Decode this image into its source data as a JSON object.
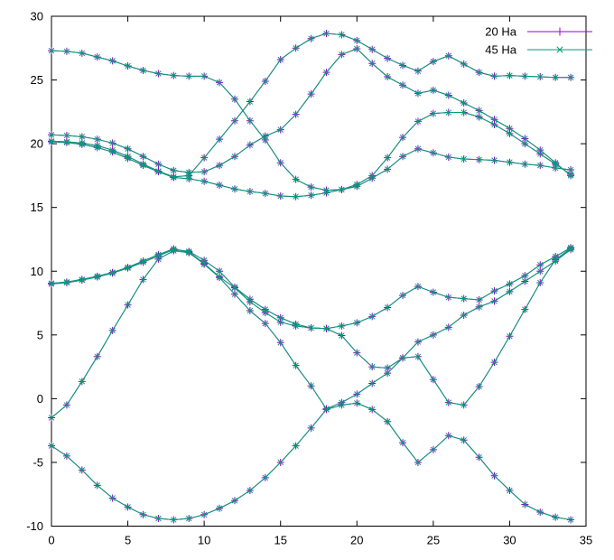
{
  "chart_data": {
    "type": "line",
    "title": "",
    "xlabel": "",
    "ylabel": "",
    "xlim": [
      0,
      35
    ],
    "ylim": [
      -10,
      30
    ],
    "xticks": [
      0,
      5,
      10,
      15,
      20,
      25,
      30,
      35
    ],
    "yticks": [
      -10,
      -5,
      0,
      5,
      10,
      15,
      20,
      25,
      30
    ],
    "grid": false,
    "legend_position": "top-right-inside",
    "x": [
      0,
      1,
      2,
      3,
      4,
      5,
      6,
      7,
      8,
      9,
      10,
      11,
      12,
      13,
      14,
      15,
      16,
      17,
      18,
      19,
      20,
      21,
      22,
      23,
      24,
      25,
      26,
      27,
      28,
      29,
      30,
      31,
      32,
      33,
      34
    ],
    "series": [
      {
        "name": "20 Ha",
        "color": "#9400d3",
        "marker": "plus"
      },
      {
        "name": "45 Ha",
        "color": "#009e73",
        "marker": "cross"
      }
    ],
    "note": "Both series are visually coincident band-structure curves; each series draws the same 8 bands.",
    "bands": [
      [
        -3.7,
        -4.5,
        -5.6,
        -6.8,
        -7.8,
        -8.5,
        -9.1,
        -9.4,
        -9.5,
        -9.4,
        -9.1,
        -8.6,
        -8.0,
        -7.2,
        -6.2,
        -5.0,
        -3.7,
        -2.3,
        -0.85,
        -0.5,
        -0.35,
        -0.85,
        -1.8,
        -3.45,
        -5.0,
        -4.0,
        -2.9,
        -3.25,
        -4.6,
        -6.05,
        -7.2,
        -8.3,
        -8.9,
        -9.3,
        -9.5
      ],
      [
        -1.5,
        -0.5,
        1.35,
        3.3,
        5.35,
        7.35,
        9.35,
        10.95,
        11.6,
        11.45,
        10.55,
        9.5,
        8.2,
        6.9,
        5.9,
        4.4,
        2.6,
        1.0,
        -0.8,
        -0.3,
        0.35,
        1.2,
        2.0,
        3.2,
        3.3,
        1.5,
        -0.3,
        -0.5,
        0.95,
        2.85,
        4.9,
        7.0,
        9.1,
        10.9,
        11.8
      ],
      [
        9.0,
        9.1,
        9.3,
        9.55,
        9.85,
        10.25,
        10.7,
        11.2,
        11.7,
        11.55,
        10.85,
        10.0,
        8.75,
        7.8,
        7.0,
        6.35,
        5.85,
        5.55,
        5.5,
        5.7,
        5.95,
        6.45,
        7.15,
        8.1,
        8.8,
        8.35,
        7.95,
        7.85,
        7.75,
        8.45,
        9.0,
        9.65,
        10.5,
        11.15,
        11.85
      ],
      [
        9.05,
        9.15,
        9.35,
        9.6,
        9.9,
        10.3,
        10.8,
        11.3,
        11.75,
        11.5,
        10.6,
        9.55,
        8.7,
        7.6,
        6.75,
        6.0,
        5.7,
        5.55,
        5.5,
        4.95,
        3.6,
        2.5,
        2.4,
        3.2,
        4.45,
        5.0,
        5.6,
        6.55,
        7.2,
        7.65,
        8.4,
        9.2,
        10.0,
        10.8,
        11.7
      ],
      [
        20.15,
        20.1,
        19.95,
        19.7,
        19.35,
        18.85,
        18.3,
        17.8,
        17.35,
        17.25,
        17.05,
        16.75,
        16.45,
        16.25,
        16.1,
        15.9,
        15.85,
        15.95,
        16.15,
        16.4,
        16.65,
        17.3,
        18.0,
        19.0,
        19.6,
        19.28,
        18.95,
        18.8,
        18.75,
        18.7,
        18.55,
        18.4,
        18.3,
        18.1,
        17.95
      ],
      [
        27.3,
        27.25,
        27.1,
        26.8,
        26.5,
        26.1,
        25.75,
        25.5,
        25.35,
        25.3,
        25.3,
        24.8,
        23.5,
        21.8,
        20.3,
        18.5,
        17.2,
        16.6,
        16.35,
        16.4,
        16.8,
        17.5,
        18.9,
        20.5,
        21.75,
        22.37,
        22.45,
        22.45,
        22.1,
        21.5,
        20.8,
        20.0,
        19.2,
        18.4,
        17.6
      ],
      [
        20.2,
        20.15,
        20.05,
        19.85,
        19.5,
        19.0,
        18.4,
        17.85,
        17.4,
        17.5,
        18.9,
        20.35,
        21.8,
        23.3,
        24.9,
        26.6,
        27.5,
        28.25,
        28.65,
        28.55,
        28.1,
        27.4,
        26.7,
        26.15,
        25.7,
        26.45,
        26.9,
        26.25,
        25.6,
        25.3,
        25.35,
        25.3,
        25.25,
        25.2,
        25.2
      ],
      [
        20.7,
        20.65,
        20.55,
        20.35,
        20.05,
        19.6,
        19.0,
        18.4,
        17.9,
        17.75,
        17.8,
        18.3,
        19.0,
        19.9,
        20.6,
        21.1,
        22.3,
        23.9,
        25.6,
        27.0,
        27.45,
        26.3,
        25.25,
        24.6,
        23.95,
        24.2,
        23.8,
        23.2,
        22.6,
        21.9,
        21.2,
        20.4,
        19.5,
        18.5,
        17.5
      ]
    ],
    "axis_color": "#000000",
    "background_color": "#ffffff",
    "tick_font_size": 13,
    "legend_font_size": 13
  }
}
